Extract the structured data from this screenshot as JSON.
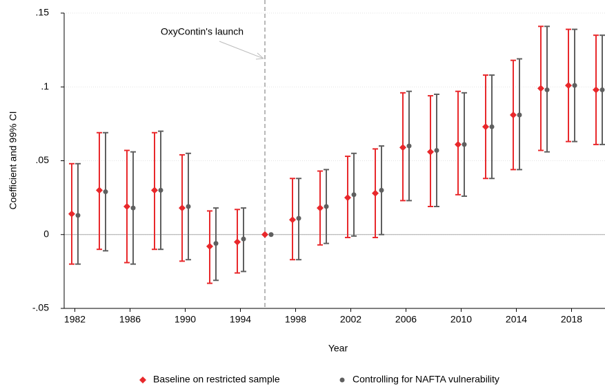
{
  "chart_data": {
    "type": "errorbar",
    "y_axis_label": "Coefficient and 99% CI",
    "x_axis_label": "Year",
    "annotation": "OxyContin's launch",
    "vline_index": 7,
    "hline": 0,
    "categories": [
      "1982",
      null,
      "1986",
      null,
      "1990",
      null,
      "1994",
      null,
      "1998",
      null,
      "2002",
      null,
      "2006",
      null,
      "2010",
      null,
      "2014",
      null,
      "2018",
      null
    ],
    "ylim": [
      -0.05,
      0.15
    ],
    "yticks": [
      {
        "value": -0.05,
        "label": "-.05"
      },
      0,
      {
        "value": 0.05,
        "label": ".05"
      },
      {
        "value": 0.1,
        "label": ".1"
      },
      {
        "value": 0.15,
        "label": ".15"
      }
    ],
    "grid": true,
    "legend": "bottom",
    "series": [
      {
        "name": "Baseline on restricted sample",
        "color": "#e8282b",
        "marker": "diamond",
        "values": [
          0.014,
          0.03,
          0.019,
          0.03,
          0.018,
          -0.008,
          -0.005,
          0,
          0.01,
          0.018,
          0.025,
          0.028,
          0.059,
          0.056,
          0.061,
          0.073,
          0.081,
          0.099,
          0.101,
          0.098
        ],
        "lower": [
          -0.02,
          -0.01,
          -0.019,
          -0.01,
          -0.018,
          -0.033,
          -0.026,
          null,
          -0.017,
          -0.007,
          -0.002,
          -0.002,
          0.023,
          0.019,
          0.027,
          0.038,
          0.044,
          0.057,
          0.063,
          0.061
        ],
        "upper": [
          0.048,
          0.069,
          0.057,
          0.069,
          0.054,
          0.016,
          0.017,
          null,
          0.038,
          0.043,
          0.053,
          0.058,
          0.096,
          0.094,
          0.097,
          0.108,
          0.118,
          0.141,
          0.139,
          0.135
        ]
      },
      {
        "name": "Controlling for NAFTA vulnerability",
        "color": "#5f5f5f",
        "marker": "circle",
        "values": [
          0.013,
          0.029,
          0.018,
          0.03,
          0.019,
          -0.006,
          -0.003,
          0,
          0.011,
          0.019,
          0.027,
          0.03,
          0.06,
          0.057,
          0.061,
          0.073,
          0.081,
          0.098,
          0.101,
          0.098
        ],
        "lower": [
          -0.02,
          -0.011,
          -0.02,
          -0.01,
          -0.017,
          -0.031,
          -0.025,
          null,
          -0.017,
          -0.006,
          -0.001,
          0,
          0.023,
          0.019,
          0.026,
          0.038,
          0.044,
          0.056,
          0.063,
          0.061
        ],
        "upper": [
          0.048,
          0.069,
          0.056,
          0.07,
          0.055,
          0.018,
          0.018,
          null,
          0.038,
          0.044,
          0.055,
          0.06,
          0.097,
          0.095,
          0.096,
          0.108,
          0.119,
          0.141,
          0.139,
          0.135
        ]
      }
    ]
  }
}
